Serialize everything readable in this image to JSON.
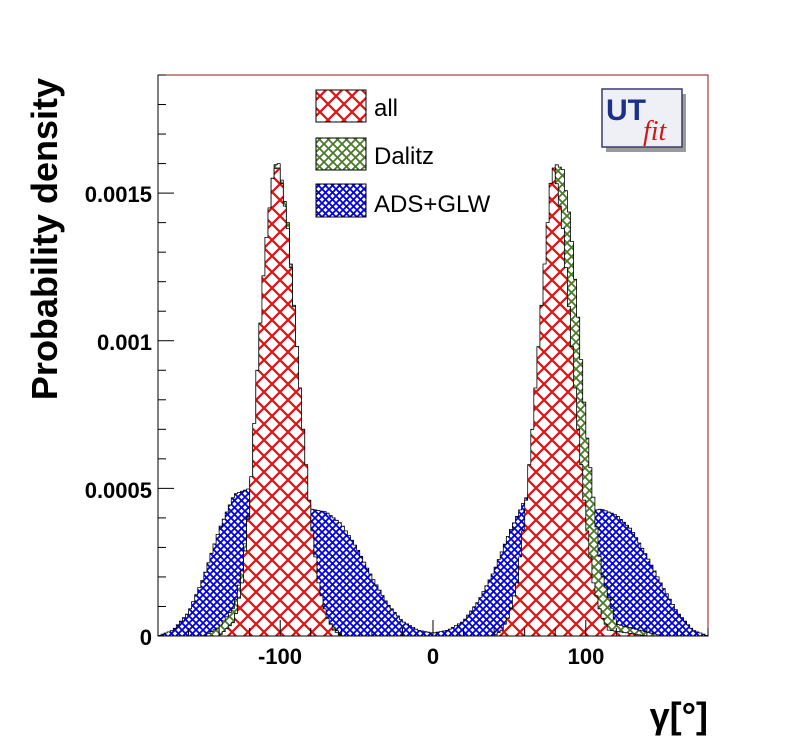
{
  "chart_data": {
    "type": "area",
    "title": "",
    "xlabel": "γ[°]",
    "ylabel": "Probability density",
    "xlim": [
      -180,
      180
    ],
    "ylim": [
      0,
      0.0019
    ],
    "x_ticks": [
      -100,
      0,
      100
    ],
    "x_tick_labels": [
      "-100",
      "0",
      "100"
    ],
    "y_ticks": [
      0,
      0.0005,
      0.001,
      0.0015
    ],
    "y_tick_labels": [
      "0",
      "0.0005",
      "0.001",
      "0.0015"
    ],
    "grid": false,
    "legend_position": "top-center",
    "series": [
      {
        "name": "ADS+GLW",
        "color": "#0000e0",
        "fill": "cross-hatch",
        "x": [
          -180,
          -170,
          -160,
          -150,
          -140,
          -130,
          -120,
          -115,
          -110,
          -100,
          -90,
          -80,
          -70,
          -60,
          -50,
          -40,
          -30,
          -20,
          -10,
          0,
          10,
          20,
          30,
          40,
          50,
          60,
          65,
          70,
          80,
          90,
          100,
          110,
          120,
          130,
          140,
          150,
          160,
          170,
          180
        ],
        "y": [
          0,
          2e-05,
          8e-05,
          0.0002,
          0.00036,
          0.00048,
          0.0005,
          0.00049,
          0.00046,
          0.00041,
          0.00042,
          0.00043,
          0.00042,
          0.00038,
          0.0003,
          0.0002,
          0.00011,
          5e-05,
          2e-05,
          1e-05,
          2e-05,
          5e-05,
          0.00012,
          0.00022,
          0.00035,
          0.00046,
          0.0005,
          0.00049,
          0.00046,
          0.00042,
          0.00042,
          0.00043,
          0.00041,
          0.00036,
          0.00027,
          0.00017,
          8e-05,
          2e-05,
          0
        ]
      },
      {
        "name": "Dalitz",
        "color": "#4a7a2a",
        "fill": "cross-hatch",
        "x": [
          -180,
          -150,
          -140,
          -130,
          -125,
          -120,
          -115,
          -110,
          -105,
          -102,
          -100,
          -95,
          -90,
          -85,
          -80,
          -75,
          -70,
          -60,
          -40,
          0,
          40,
          60,
          65,
          70,
          75,
          78,
          80,
          85,
          90,
          95,
          100,
          110,
          120,
          150,
          180
        ],
        "y": [
          0,
          0,
          3e-05,
          0.0001,
          0.00022,
          0.00045,
          0.00085,
          0.00128,
          0.00155,
          0.00162,
          0.00158,
          0.0014,
          0.00105,
          0.0007,
          0.00038,
          0.00016,
          6e-05,
          0,
          0,
          0,
          0,
          6e-05,
          0.00016,
          0.00038,
          0.00075,
          0.00115,
          0.0016,
          0.00158,
          0.0014,
          0.00108,
          0.00072,
          0.00022,
          4e-05,
          0,
          0
        ]
      },
      {
        "name": "all",
        "color": "#e01010",
        "fill": "cross-hatch",
        "x": [
          -180,
          -140,
          -130,
          -125,
          -120,
          -115,
          -110,
          -105,
          -102,
          -100,
          -95,
          -90,
          -85,
          -80,
          -75,
          -70,
          -65,
          -60,
          -40,
          0,
          40,
          45,
          50,
          55,
          60,
          65,
          70,
          75,
          78,
          80,
          85,
          90,
          95,
          100,
          105,
          110,
          115,
          140,
          180
        ],
        "y": [
          0,
          0,
          5e-05,
          0.00018,
          0.00045,
          0.0009,
          0.0013,
          0.00155,
          0.0016,
          0.00157,
          0.00138,
          0.00105,
          0.0007,
          0.0004,
          0.00018,
          7e-05,
          2e-05,
          0,
          0,
          0,
          0,
          2e-05,
          7e-05,
          0.00018,
          0.0004,
          0.0007,
          0.00105,
          0.0014,
          0.0016,
          0.00157,
          0.00138,
          0.00105,
          0.0007,
          0.0004,
          0.00018,
          7e-05,
          2e-05,
          0,
          0
        ]
      }
    ],
    "legend_order": [
      "all",
      "Dalitz",
      "ADS+GLW"
    ]
  },
  "logo": {
    "part1": "UT",
    "part2": "fit"
  }
}
